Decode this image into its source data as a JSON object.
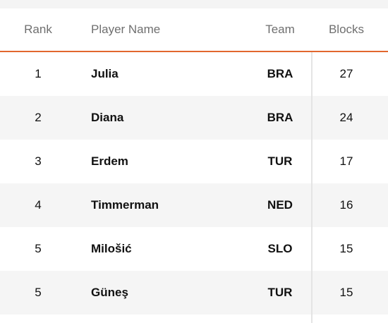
{
  "table": {
    "headers": {
      "rank": "Rank",
      "player_name": "Player Name",
      "team": "Team",
      "blocks": "Blocks"
    },
    "rows": [
      {
        "rank": "1",
        "player_name": "Julia",
        "team": "BRA",
        "blocks": "27"
      },
      {
        "rank": "2",
        "player_name": "Diana",
        "team": "BRA",
        "blocks": "24"
      },
      {
        "rank": "3",
        "player_name": "Erdem",
        "team": "TUR",
        "blocks": "17"
      },
      {
        "rank": "4",
        "player_name": "Timmerman",
        "team": "NED",
        "blocks": "16"
      },
      {
        "rank": "5",
        "player_name": "Milošić",
        "team": "SLO",
        "blocks": "15"
      },
      {
        "rank": "5",
        "player_name": "Güneş",
        "team": "TUR",
        "blocks": "15"
      }
    ]
  },
  "colors": {
    "accent_line": "#e2672e",
    "alt_row": "#f5f5f5",
    "header_text": "#6f6f6f"
  }
}
